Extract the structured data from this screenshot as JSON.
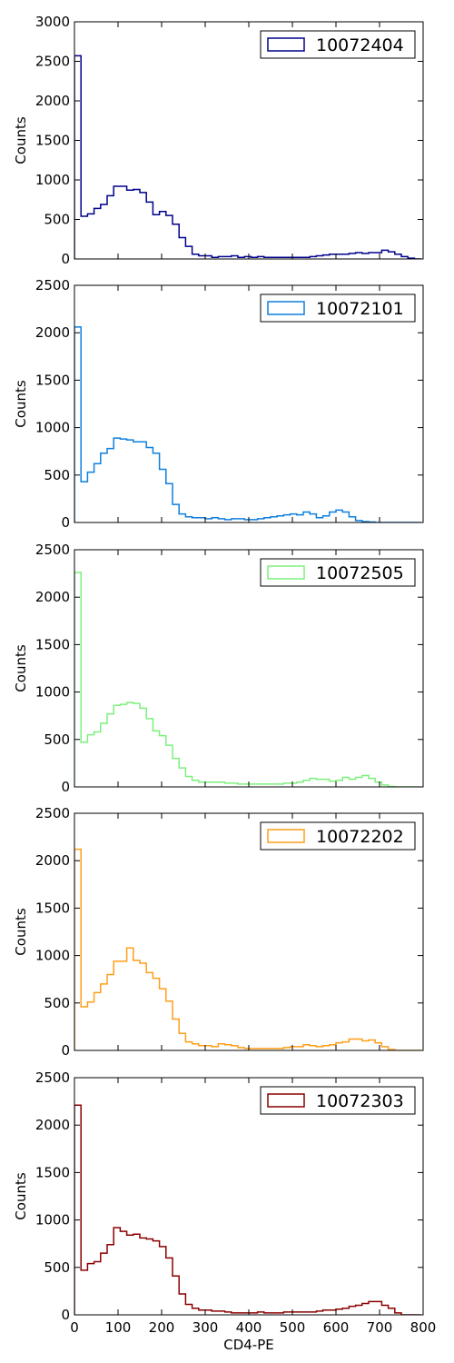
{
  "chart_data": [
    {
      "type": "histogram",
      "series_name": "10072404",
      "color": "#00008b",
      "xlim": [
        0,
        800
      ],
      "ylim": [
        0,
        3000
      ],
      "yticks": [
        0,
        500,
        1000,
        1500,
        2000,
        2500,
        3000
      ],
      "xticks": [
        0,
        100,
        200,
        300,
        400,
        500,
        600,
        700,
        800
      ],
      "show_xtick_labels": false,
      "xlabel": "",
      "ylabel": "Counts",
      "legend_position": "top-right",
      "bin_width": 15,
      "counts": [
        2570,
        540,
        570,
        640,
        690,
        800,
        920,
        920,
        870,
        880,
        840,
        720,
        560,
        600,
        550,
        440,
        270,
        160,
        60,
        40,
        40,
        20,
        30,
        30,
        40,
        20,
        30,
        20,
        30,
        20,
        20,
        20,
        20,
        20,
        20,
        20,
        30,
        40,
        50,
        60,
        60,
        60,
        70,
        80,
        70,
        80,
        80,
        110,
        90,
        60,
        30,
        10,
        0
      ]
    },
    {
      "type": "histogram",
      "series_name": "10072101",
      "color": "#0e7fde",
      "xlim": [
        0,
        800
      ],
      "ylim": [
        0,
        2500
      ],
      "yticks": [
        0,
        500,
        1000,
        1500,
        2000,
        2500
      ],
      "xticks": [
        0,
        100,
        200,
        300,
        400,
        500,
        600,
        700,
        800
      ],
      "show_xtick_labels": false,
      "xlabel": "",
      "ylabel": "Counts",
      "legend_position": "top-right",
      "bin_width": 15,
      "counts": [
        2060,
        430,
        530,
        620,
        730,
        780,
        890,
        880,
        870,
        850,
        850,
        790,
        730,
        560,
        410,
        190,
        90,
        60,
        50,
        50,
        40,
        50,
        40,
        30,
        40,
        40,
        30,
        30,
        40,
        50,
        60,
        70,
        80,
        90,
        80,
        110,
        90,
        50,
        70,
        110,
        130,
        110,
        60,
        20,
        10,
        5,
        0,
        0,
        0,
        0,
        0,
        0,
        0
      ]
    },
    {
      "type": "histogram",
      "series_name": "10072505",
      "color": "#7df07d",
      "xlim": [
        0,
        800
      ],
      "ylim": [
        0,
        2500
      ],
      "yticks": [
        0,
        500,
        1000,
        1500,
        2000,
        2500
      ],
      "xticks": [
        0,
        100,
        200,
        300,
        400,
        500,
        600,
        700,
        800
      ],
      "show_xtick_labels": false,
      "xlabel": "",
      "ylabel": "Counts",
      "legend_position": "top-right",
      "bin_width": 15,
      "counts": [
        2260,
        470,
        550,
        580,
        670,
        770,
        860,
        870,
        890,
        880,
        830,
        720,
        590,
        540,
        440,
        300,
        200,
        110,
        70,
        50,
        50,
        50,
        50,
        40,
        40,
        30,
        30,
        30,
        30,
        30,
        30,
        30,
        40,
        40,
        50,
        70,
        90,
        80,
        80,
        60,
        70,
        100,
        80,
        100,
        120,
        90,
        50,
        20,
        5,
        0,
        0,
        0,
        0
      ]
    },
    {
      "type": "histogram",
      "series_name": "10072202",
      "color": "#ff9e18",
      "xlim": [
        0,
        800
      ],
      "ylim": [
        0,
        2500
      ],
      "yticks": [
        0,
        500,
        1000,
        1500,
        2000,
        2500
      ],
      "xticks": [
        0,
        100,
        200,
        300,
        400,
        500,
        600,
        700,
        800
      ],
      "show_xtick_labels": false,
      "xlabel": "",
      "ylabel": "Counts",
      "legend_position": "top-right",
      "bin_width": 15,
      "counts": [
        2120,
        460,
        510,
        610,
        700,
        800,
        940,
        940,
        1080,
        950,
        920,
        820,
        760,
        650,
        520,
        330,
        180,
        90,
        70,
        50,
        50,
        40,
        70,
        60,
        50,
        30,
        20,
        20,
        20,
        20,
        20,
        20,
        30,
        40,
        40,
        60,
        50,
        40,
        50,
        60,
        80,
        90,
        120,
        120,
        100,
        110,
        80,
        40,
        10,
        0,
        0,
        0,
        0
      ]
    },
    {
      "type": "histogram",
      "series_name": "10072303",
      "color": "#8b0000",
      "xlim": [
        0,
        800
      ],
      "ylim": [
        0,
        2500
      ],
      "yticks": [
        0,
        500,
        1000,
        1500,
        2000,
        2500
      ],
      "xticks": [
        0,
        100,
        200,
        300,
        400,
        500,
        600,
        700,
        800
      ],
      "show_xtick_labels": true,
      "xlabel": "CD4-PE",
      "ylabel": "Counts",
      "legend_position": "top-right",
      "bin_width": 15,
      "counts": [
        2210,
        470,
        540,
        560,
        650,
        740,
        920,
        880,
        840,
        850,
        810,
        800,
        780,
        720,
        600,
        410,
        220,
        110,
        70,
        50,
        50,
        40,
        40,
        30,
        20,
        20,
        20,
        20,
        30,
        20,
        20,
        20,
        30,
        30,
        30,
        30,
        30,
        40,
        50,
        50,
        60,
        70,
        90,
        100,
        120,
        140,
        140,
        100,
        70,
        20,
        0,
        0,
        0
      ]
    }
  ]
}
